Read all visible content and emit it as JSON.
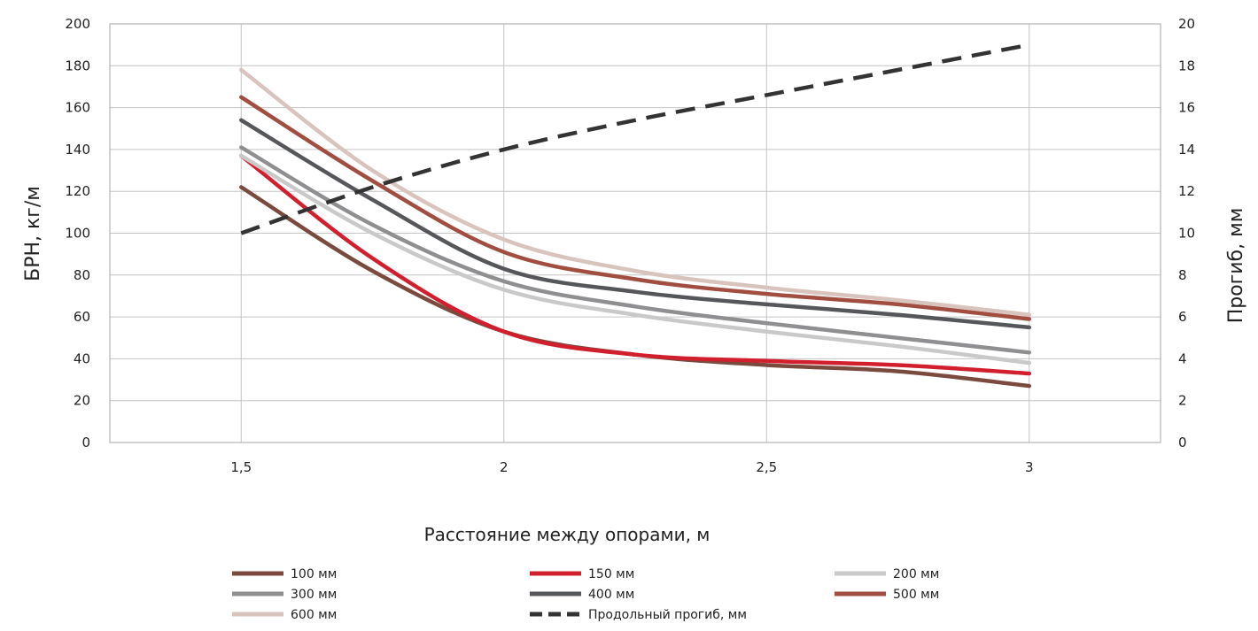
{
  "chart_data": {
    "type": "line",
    "xlabel": "Расстояние между опорами, м",
    "ylabel_left": "БРН, кг/м",
    "ylabel_right": "Прогиб, мм",
    "x_ticks": [
      "1,5",
      "2",
      "2,5",
      "3"
    ],
    "x_tick_values": [
      1.5,
      2,
      2.5,
      3
    ],
    "xlim": [
      1.25,
      3.25
    ],
    "y_left_ticks": [
      "0",
      "20",
      "40",
      "60",
      "80",
      "100",
      "120",
      "140",
      "160",
      "180",
      "200"
    ],
    "y_right_ticks": [
      "0",
      "2",
      "4",
      "6",
      "8",
      "10",
      "12",
      "14",
      "16",
      "18",
      "20"
    ],
    "ylim_left": [
      0,
      200
    ],
    "ylim_right": [
      0,
      20
    ],
    "grid": "on",
    "legend_position": "bottom",
    "series": [
      {
        "name": "100 мм",
        "color": "#7b4a3f",
        "axis": "left",
        "dash": false,
        "x": [
          1.5,
          1.75,
          2,
          2.25,
          2.5,
          2.75,
          3
        ],
        "y": [
          122,
          82,
          53,
          42,
          37,
          34,
          27
        ]
      },
      {
        "name": "150 мм",
        "color": "#d11f2e",
        "axis": "left",
        "dash": false,
        "x": [
          1.5,
          1.75,
          2,
          2.25,
          2.5,
          2.75,
          3
        ],
        "y": [
          137,
          88,
          53,
          42,
          39,
          37,
          33
        ]
      },
      {
        "name": "200 мм",
        "color": "#c9c9c9",
        "axis": "left",
        "dash": false,
        "x": [
          1.5,
          1.75,
          2,
          2.25,
          2.5,
          2.75,
          3
        ],
        "y": [
          137,
          100,
          73,
          61,
          53,
          46,
          38
        ]
      },
      {
        "name": "300 мм",
        "color": "#8f8f92",
        "axis": "left",
        "dash": false,
        "x": [
          1.5,
          1.75,
          2,
          2.25,
          2.5,
          2.75,
          3
        ],
        "y": [
          141,
          104,
          77,
          65,
          57,
          50,
          43
        ]
      },
      {
        "name": "400 мм",
        "color": "#55575a",
        "axis": "left",
        "dash": false,
        "x": [
          1.5,
          1.75,
          2,
          2.25,
          2.5,
          2.75,
          3
        ],
        "y": [
          154,
          116,
          83,
          72,
          66,
          61,
          55
        ]
      },
      {
        "name": "500 мм",
        "color": "#a14e40",
        "axis": "left",
        "dash": false,
        "x": [
          1.5,
          1.75,
          2,
          2.25,
          2.5,
          2.75,
          3
        ],
        "y": [
          165,
          125,
          91,
          78,
          71,
          66,
          59
        ]
      },
      {
        "name": "600 мм",
        "color": "#d8c3bd",
        "axis": "left",
        "dash": false,
        "x": [
          1.5,
          1.75,
          2,
          2.25,
          2.5,
          2.75,
          3
        ],
        "y": [
          178,
          130,
          97,
          82,
          74,
          68,
          61
        ]
      },
      {
        "name": "Продольный прогиб, мм",
        "color": "#333333",
        "axis": "right",
        "dash": true,
        "x": [
          1.5,
          1.75,
          2,
          2.25,
          2.5,
          2.75,
          3
        ],
        "y": [
          10,
          12.2,
          14,
          15.4,
          16.6,
          17.8,
          19
        ]
      }
    ]
  }
}
